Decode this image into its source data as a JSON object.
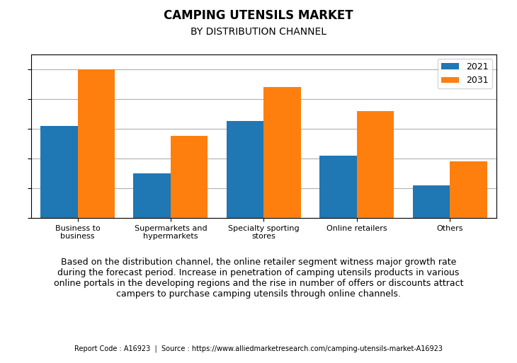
{
  "chart_data": {
    "type": "bar",
    "title": "CAMPING UTENSILS MARKET",
    "subtitle": "BY DISTRIBUTION CHANNEL",
    "categories": [
      "Business to\nbusiness",
      "Supermarkets and\nhypermarkets",
      "Specialty sporting\nstores",
      "Online retailers",
      "Others"
    ],
    "series": [
      {
        "name": "2021",
        "values": [
          62,
          30,
          65,
          42,
          22
        ]
      },
      {
        "name": "2031",
        "values": [
          100,
          55,
          88,
          72,
          38
        ]
      }
    ],
    "ylim": [
      0,
      110
    ],
    "yticks": [
      0,
      20,
      40,
      60,
      80,
      100
    ],
    "grid": true,
    "legend": "upper right",
    "tick_labels": "x",
    "annotations": [
      "Based on the distribution channel, the online retailer segment witness major growth rate\nduring the forecast period. Increase in penetration of camping utensils products in various\nonline portals in the developing regions and the rise in number of offers or discounts attract\ncampers to purchase camping utensils through online channels.",
      "Report Code : A16923  |  Source : https://www.alliedmarketresearch.com/camping-utensils-market-A16923"
    ]
  }
}
